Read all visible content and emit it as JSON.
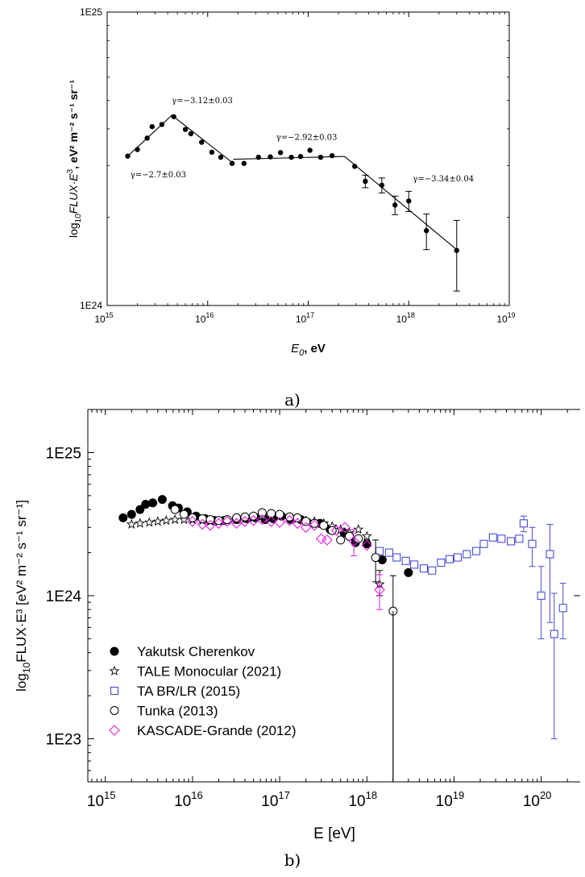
{
  "chart_data": [
    {
      "type": "scatter",
      "caption": "a)",
      "xlabel_main": "E",
      "xlabel_sub": "0",
      "xlabel_unit": ", eV",
      "ylabel_main": "log",
      "ylabel_sub": "10",
      "ylabel_flux": "FLUX·E",
      "ylabel_exp": "3",
      "ylabel_units": ", eV² m⁻² s⁻¹ sr⁻¹",
      "xscale": "log",
      "yscale": "log",
      "xlim": [
        1000000000000000.0,
        1e+19
      ],
      "ylim": [
        1e+24,
        1e+25
      ],
      "x_ticks": [
        {
          "value": 1000000000000000.0,
          "base": "10",
          "exp": "15"
        },
        {
          "value": 1e+16,
          "base": "10",
          "exp": "16"
        },
        {
          "value": 1e+17,
          "base": "10",
          "exp": "17"
        },
        {
          "value": 1e+18,
          "base": "10",
          "exp": "18"
        },
        {
          "value": 1e+19,
          "base": "10",
          "exp": "19"
        }
      ],
      "y_ticks": [
        {
          "value": 1e+24,
          "label": "1E24"
        },
        {
          "value": 1e+25,
          "label": "1E25"
        }
      ],
      "series": [
        {
          "marker": "filled-circle",
          "color": "#000000",
          "points": [
            {
              "x": 1600000000000000.0,
              "y": 3.23e+24
            },
            {
              "x": 2000000000000000.0,
              "y": 3.4e+24
            },
            {
              "x": 2500000000000000.0,
              "y": 3.72e+24
            },
            {
              "x": 2800000000000000.0,
              "y": 4.07e+24
            },
            {
              "x": 3500000000000000.0,
              "y": 4.14e+24
            },
            {
              "x": 4600000000000000.0,
              "y": 4.4e+24
            },
            {
              "x": 6000000000000000.0,
              "y": 3.98e+24
            },
            {
              "x": 6800000000000000.0,
              "y": 3.85e+24
            },
            {
              "x": 8700000000000000.0,
              "y": 3.6e+24
            },
            {
              "x": 1.1e+16,
              "y": 3.33e+24
            },
            {
              "x": 1.35e+16,
              "y": 3.2e+24
            },
            {
              "x": 1.75e+16,
              "y": 3.05e+24
            },
            {
              "x": 2.3e+16,
              "y": 3.05e+24
            },
            {
              "x": 3.2e+16,
              "y": 3.2e+24
            },
            {
              "x": 4.2e+16,
              "y": 3.21e+24
            },
            {
              "x": 5.3e+16,
              "y": 3.32e+24
            },
            {
              "x": 6.8e+16,
              "y": 3.2e+24
            },
            {
              "x": 8.4e+16,
              "y": 3.22e+24
            },
            {
              "x": 1.04e+17,
              "y": 3.38e+24
            },
            {
              "x": 1.33e+17,
              "y": 3.2e+24
            },
            {
              "x": 1.73e+17,
              "y": 3.24e+24
            },
            {
              "x": 2.9e+17,
              "y": 2.98e+24
            },
            {
              "x": 3.7e+17,
              "y": 2.65e+24,
              "err": [
                1.3e+23,
                1.3e+23
              ]
            },
            {
              "x": 5.4e+17,
              "y": 2.57e+24,
              "err": [
                1.5e+23,
                1.5e+23
              ]
            },
            {
              "x": 7.3e+17,
              "y": 2.2e+24,
              "err": [
                1.6e+23,
                1.6e+23
              ]
            },
            {
              "x": 1e+18,
              "y": 2.27e+24,
              "err": [
                1.8e+23,
                1.8e+23
              ]
            },
            {
              "x": 1.5e+18,
              "y": 1.8e+24,
              "err": [
                2.5e+23,
                2.5e+23
              ]
            },
            {
              "x": 3e+18,
              "y": 1.54e+24,
              "err": [
                4.2e+23,
                4.1e+23
              ]
            }
          ]
        }
      ],
      "fit_lines": [
        [
          [
            1600000000000000.0,
            3.23e+24
          ],
          [
            4400000000000000.0,
            4.45e+24
          ],
          [
            1.8e+16,
            3.05e+24
          ]
        ],
        [
          [
            1.8e+16,
            3.15e+24
          ],
          [
            2.3e+17,
            3.22e+24
          ]
        ],
        [
          [
            2.3e+17,
            3.22e+24
          ],
          [
            3e+18,
            1.55e+24
          ]
        ]
      ],
      "annotations": [
        {
          "text": "γ=−2.7±0.03",
          "x": 1700000000000000.0,
          "y": 2.73e+24
        },
        {
          "text": "γ=−3.12±0.03",
          "x": 4400000000000000.0,
          "y": 4.9e+24
        },
        {
          "text": "γ=−2.92±0.03",
          "x": 4.8e+16,
          "y": 3.67e+24
        },
        {
          "text": "γ=−3.34±0.04",
          "x": 1.1e+18,
          "y": 2.65e+24
        }
      ]
    },
    {
      "type": "scatter",
      "caption": "b)",
      "xlabel": "E  [eV]",
      "ylabel_main": "log",
      "ylabel_sub": "10",
      "ylabel_rest": "FLUX·E³ [eV² m⁻² s⁻¹ sr⁻¹]",
      "xscale": "log",
      "yscale": "log",
      "xlim": [
        630000000000000.0,
        2.8e+20
      ],
      "ylim": [
        5e+22,
        2e+25
      ],
      "x_ticks": [
        {
          "value": 1000000000000000.0,
          "base": "10",
          "exp": "15"
        },
        {
          "value": 1e+16,
          "base": "10",
          "exp": "16"
        },
        {
          "value": 1e+17,
          "base": "10",
          "exp": "17"
        },
        {
          "value": 1e+18,
          "base": "10",
          "exp": "18"
        },
        {
          "value": 1e+19,
          "base": "10",
          "exp": "19"
        },
        {
          "value": 1e+20,
          "base": "10",
          "exp": "20"
        }
      ],
      "y_ticks": [
        {
          "value": 1e+23,
          "label": "1E23"
        },
        {
          "value": 1e+24,
          "label": "1E24"
        },
        {
          "value": 1e+25,
          "label": "1E25"
        }
      ],
      "series": [
        {
          "name": "Yakutsk Cherenkov",
          "marker": "filled-circle",
          "color": "#000000",
          "points": [
            {
              "x": 1600000000000000.0,
              "y": 3.5e+24
            },
            {
              "x": 2000000000000000.0,
              "y": 3.7e+24
            },
            {
              "x": 2500000000000000.0,
              "y": 4e+24
            },
            {
              "x": 2900000000000000.0,
              "y": 4.35e+24
            },
            {
              "x": 3500000000000000.0,
              "y": 4.45e+24
            },
            {
              "x": 4500000000000000.0,
              "y": 4.7e+24
            },
            {
              "x": 5900000000000000.0,
              "y": 4.25e+24
            },
            {
              "x": 6900000000000000.0,
              "y": 4.1e+24
            },
            {
              "x": 8700000000000000.0,
              "y": 3.85e+24
            },
            {
              "x": 1.1e+16,
              "y": 3.6e+24
            },
            {
              "x": 1.4e+16,
              "y": 3.45e+24
            },
            {
              "x": 1.8e+16,
              "y": 3.35e+24
            },
            {
              "x": 2.3e+16,
              "y": 3.35e+24
            },
            {
              "x": 3.2e+16,
              "y": 3.4e+24
            },
            {
              "x": 4.2e+16,
              "y": 3.45e+24
            },
            {
              "x": 5.3e+16,
              "y": 3.5e+24
            },
            {
              "x": 6.8e+16,
              "y": 3.4e+24
            },
            {
              "x": 8.4e+16,
              "y": 3.45e+24
            },
            {
              "x": 1.05e+17,
              "y": 3.6e+24
            },
            {
              "x": 1.35e+17,
              "y": 3.4e+24
            },
            {
              "x": 1.75e+17,
              "y": 3.4e+24
            },
            {
              "x": 2.9e+17,
              "y": 3.2e+24
            },
            {
              "x": 3.8e+17,
              "y": 2.9e+24
            },
            {
              "x": 5.5e+17,
              "y": 2.75e+24
            },
            {
              "x": 7.4e+17,
              "y": 2.35e+24
            },
            {
              "x": 1e+18,
              "y": 2.3e+24
            },
            {
              "x": 1.5e+18,
              "y": 1.78e+24
            },
            {
              "x": 3e+18,
              "y": 1.45e+24
            }
          ]
        },
        {
          "name": "TALE Monocular (2021)",
          "marker": "star",
          "color": "#000000",
          "points": [
            {
              "x": 2000000000000000.0,
              "y": 3.15e+24
            },
            {
              "x": 2500000000000000.0,
              "y": 3.2e+24
            },
            {
              "x": 3200000000000000.0,
              "y": 3.25e+24
            },
            {
              "x": 4000000000000000.0,
              "y": 3.3e+24
            },
            {
              "x": 5000000000000000.0,
              "y": 3.35e+24
            },
            {
              "x": 6300000000000000.0,
              "y": 3.4e+24
            },
            {
              "x": 8000000000000000.0,
              "y": 3.4e+24
            },
            {
              "x": 1e+16,
              "y": 3.4e+24
            },
            {
              "x": 1.3e+16,
              "y": 3.35e+24
            },
            {
              "x": 1.6e+16,
              "y": 3.3e+24
            },
            {
              "x": 2e+16,
              "y": 3.3e+24
            },
            {
              "x": 2.5e+16,
              "y": 3.35e+24
            },
            {
              "x": 3.2e+16,
              "y": 3.4e+24
            },
            {
              "x": 4e+16,
              "y": 3.45e+24
            },
            {
              "x": 5e+16,
              "y": 3.5e+24
            },
            {
              "x": 6.3e+16,
              "y": 3.6e+24
            },
            {
              "x": 8e+16,
              "y": 3.65e+24
            },
            {
              "x": 1e+17,
              "y": 3.6e+24
            },
            {
              "x": 1.3e+17,
              "y": 3.5e+24
            },
            {
              "x": 1.6e+17,
              "y": 3.45e+24
            },
            {
              "x": 2e+17,
              "y": 3.35e+24
            },
            {
              "x": 2.5e+17,
              "y": 3.3e+24
            },
            {
              "x": 3.2e+17,
              "y": 3.2e+24
            },
            {
              "x": 4e+17,
              "y": 3.05e+24
            },
            {
              "x": 5e+17,
              "y": 2.9e+24
            },
            {
              "x": 6.3e+17,
              "y": 2.75e+24
            },
            {
              "x": 8e+17,
              "y": 2.9e+24
            },
            {
              "x": 1e+18,
              "y": 2.6e+24
            },
            {
              "x": 1.4e+18,
              "y": 1.2e+24,
              "err": [
                2e+23,
                3e+23
              ]
            }
          ]
        },
        {
          "name": "TA BR/LR (2015)",
          "marker": "open-square",
          "color": "#4a4ad8",
          "points": [
            {
              "x": 1.4e+18,
              "y": 2.05e+24
            },
            {
              "x": 1.8e+18,
              "y": 2e+24
            },
            {
              "x": 2.2e+18,
              "y": 1.85e+24
            },
            {
              "x": 2.8e+18,
              "y": 1.75e+24
            },
            {
              "x": 3.5e+18,
              "y": 1.65e+24
            },
            {
              "x": 4.5e+18,
              "y": 1.55e+24
            },
            {
              "x": 5.6e+18,
              "y": 1.5e+24
            },
            {
              "x": 7.1e+18,
              "y": 1.7e+24
            },
            {
              "x": 8.9e+18,
              "y": 1.8e+24
            },
            {
              "x": 1.1e+19,
              "y": 1.85e+24
            },
            {
              "x": 1.4e+19,
              "y": 1.95e+24
            },
            {
              "x": 1.8e+19,
              "y": 2.05e+24
            },
            {
              "x": 2.2e+19,
              "y": 2.3e+24
            },
            {
              "x": 2.8e+19,
              "y": 2.55e+24
            },
            {
              "x": 3.5e+19,
              "y": 2.5e+24
            },
            {
              "x": 4.5e+19,
              "y": 2.4e+24
            },
            {
              "x": 5.6e+19,
              "y": 2.5e+24
            },
            {
              "x": 6.3e+19,
              "y": 3.2e+24,
              "err": [
                4e+23,
                4e+23
              ]
            },
            {
              "x": 7.9e+19,
              "y": 2.3e+24,
              "err": [
                7e+23,
                7e+23
              ]
            },
            {
              "x": 1e+20,
              "y": 1e+24,
              "err": [
                5e+23,
                6e+23
              ]
            },
            {
              "x": 1.26e+20,
              "y": 1.95e+24,
              "err": [
                1.3e+24,
                1.2e+24
              ]
            },
            {
              "x": 1.41e+20,
              "y": 5.4e+23,
              "err": [
                4.4e+23,
                5e+23
              ]
            },
            {
              "x": 1.78e+20,
              "y": 8.2e+23,
              "err": [
                3.2e+23,
                4e+23
              ]
            }
          ]
        },
        {
          "name": "Tunka (2013)",
          "marker": "open-circle",
          "color": "#000000",
          "points": [
            {
              "x": 6300000000000000.0,
              "y": 4e+24
            },
            {
              "x": 8000000000000000.0,
              "y": 3.7e+24
            },
            {
              "x": 1e+16,
              "y": 3.5e+24
            },
            {
              "x": 1.3e+16,
              "y": 3.45e+24
            },
            {
              "x": 1.6e+16,
              "y": 3.4e+24
            },
            {
              "x": 2e+16,
              "y": 3.35e+24
            },
            {
              "x": 2.5e+16,
              "y": 3.4e+24
            },
            {
              "x": 3.2e+16,
              "y": 3.5e+24
            },
            {
              "x": 4e+16,
              "y": 3.55e+24
            },
            {
              "x": 5e+16,
              "y": 3.6e+24
            },
            {
              "x": 6.3e+16,
              "y": 3.8e+24
            },
            {
              "x": 8e+16,
              "y": 3.75e+24
            },
            {
              "x": 1e+17,
              "y": 3.7e+24
            },
            {
              "x": 1.3e+17,
              "y": 3.55e+24
            },
            {
              "x": 1.6e+17,
              "y": 3.5e+24
            },
            {
              "x": 2e+17,
              "y": 3.3e+24
            },
            {
              "x": 2.5e+17,
              "y": 3.2e+24
            },
            {
              "x": 3.2e+17,
              "y": 3.1e+24
            },
            {
              "x": 4e+17,
              "y": 2.85e+24
            },
            {
              "x": 5e+17,
              "y": 2.45e+24
            },
            {
              "x": 6.3e+17,
              "y": 2.6e+24
            },
            {
              "x": 8e+17,
              "y": 2.5e+24
            },
            {
              "x": 1.26e+18,
              "y": 1.85e+24,
              "err": [
                6e+23,
                6e+23
              ]
            },
            {
              "x": 2e+18,
              "y": 7.8e+23,
              "err": [
                7.3e+23,
                6e+23
              ]
            }
          ]
        },
        {
          "name": "KASCADE-Grande (2012)",
          "marker": "open-diamond",
          "color": "#e020e0",
          "points": [
            {
              "x": 1e+16,
              "y": 3.3e+24
            },
            {
              "x": 1.3e+16,
              "y": 3.15e+24
            },
            {
              "x": 1.6e+16,
              "y": 3.1e+24
            },
            {
              "x": 2e+16,
              "y": 3.2e+24
            },
            {
              "x": 2.5e+16,
              "y": 3.3e+24
            },
            {
              "x": 3.2e+16,
              "y": 3.2e+24
            },
            {
              "x": 4e+16,
              "y": 3.3e+24
            },
            {
              "x": 5e+16,
              "y": 3.35e+24
            },
            {
              "x": 6.3e+16,
              "y": 3.4e+24
            },
            {
              "x": 8e+16,
              "y": 3.3e+24
            },
            {
              "x": 1e+17,
              "y": 3.25e+24
            },
            {
              "x": 1.3e+17,
              "y": 3.35e+24
            },
            {
              "x": 1.6e+17,
              "y": 3.2e+24
            },
            {
              "x": 2e+17,
              "y": 3e+24
            },
            {
              "x": 2.5e+17,
              "y": 3.1e+24
            },
            {
              "x": 3e+17,
              "y": 2.5e+24
            },
            {
              "x": 3.5e+17,
              "y": 2.45e+24
            },
            {
              "x": 4.5e+17,
              "y": 2.85e+24
            },
            {
              "x": 5.6e+17,
              "y": 3e+24
            },
            {
              "x": 7.1e+17,
              "y": 2.4e+24,
              "err": [
                5e+23,
                5e+23
              ]
            },
            {
              "x": 1e+18,
              "y": 2.25e+24
            },
            {
              "x": 1.4e+18,
              "y": 1.1e+24,
              "err": [
                3e+23,
                3e+23
              ]
            }
          ]
        }
      ],
      "legend_position": "bottom-left"
    }
  ]
}
